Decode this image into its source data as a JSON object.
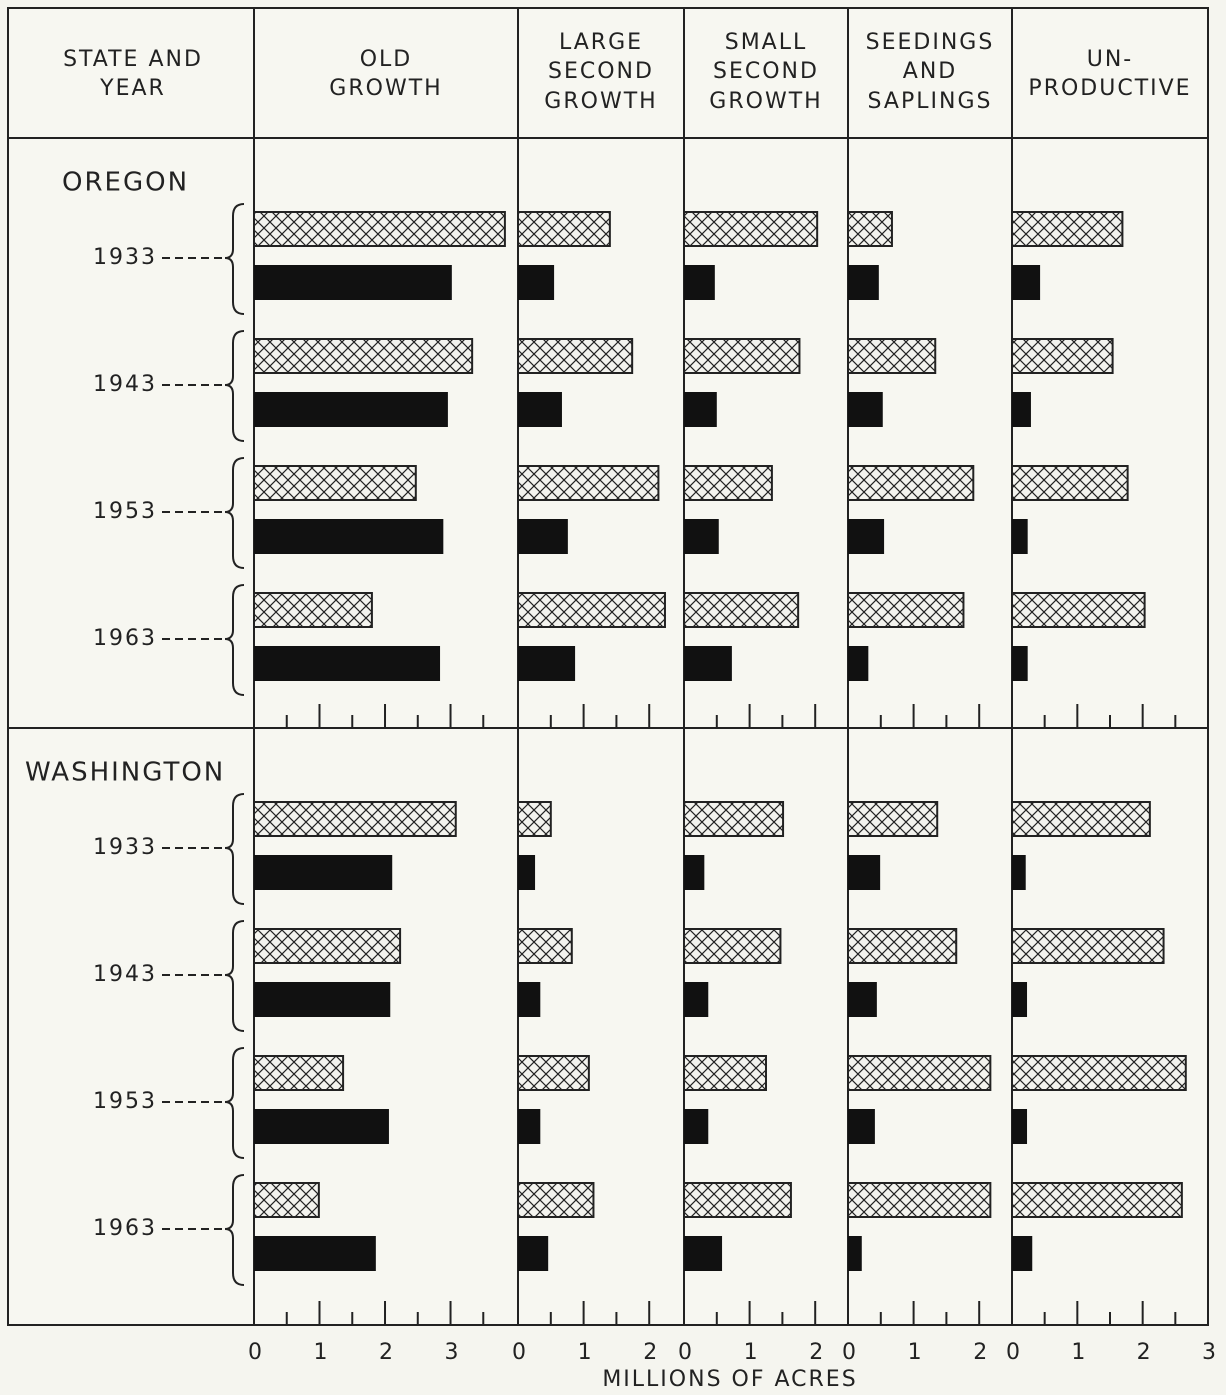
{
  "chart_data": {
    "type": "bar",
    "orientation": "horizontal",
    "header": [
      "STATE AND",
      "YEAR"
    ],
    "xlabel": "MILLIONS OF ACRES",
    "hatch_color": "#222222",
    "solid_color": "#111111",
    "columns": [
      {
        "title": [
          "OLD",
          "GROWTH"
        ],
        "xlim": [
          0,
          4.03
        ],
        "xticks": [
          0,
          1,
          2,
          3
        ],
        "minor_xticks": [
          0.5,
          1.5,
          2.5,
          3.5
        ]
      },
      {
        "title": [
          "LARGE",
          "SECOND",
          "GROWTH"
        ],
        "xlim": [
          0,
          2.53
        ],
        "xticks": [
          0,
          1,
          2
        ],
        "minor_xticks": [
          0.5,
          1.5
        ]
      },
      {
        "title": [
          "SMALL",
          "SECOND",
          "GROWTH"
        ],
        "xlim": [
          0,
          2.5
        ],
        "xticks": [
          0,
          1,
          2
        ],
        "minor_xticks": [
          0.5,
          1.5
        ]
      },
      {
        "title": [
          "SEEDINGS",
          "AND",
          "SAPLINGS"
        ],
        "xlim": [
          0,
          2.5
        ],
        "xticks": [
          0,
          1,
          2
        ],
        "minor_xticks": [
          0.5,
          1.5
        ]
      },
      {
        "title": [
          "UN-",
          "PRODUCTIVE"
        ],
        "xlim": [
          0,
          3.0
        ],
        "xticks": [
          0,
          1,
          2,
          3
        ],
        "minor_xticks": [
          0.5,
          1.5,
          2.5
        ]
      }
    ],
    "states": [
      {
        "name": "OREGON",
        "years": [
          {
            "year": "1933",
            "hatched": [
              3.83,
              1.4,
              2.03,
              0.67,
              1.69
            ],
            "solid": [
              3.02,
              0.55,
              0.47,
              0.47,
              0.43
            ]
          },
          {
            "year": "1943",
            "hatched": [
              3.33,
              1.74,
              1.76,
              1.33,
              1.54
            ],
            "solid": [
              2.96,
              0.67,
              0.5,
              0.53,
              0.29
            ]
          },
          {
            "year": "1953",
            "hatched": [
              2.47,
              2.14,
              1.34,
              1.91,
              1.77
            ],
            "solid": [
              2.89,
              0.76,
              0.53,
              0.55,
              0.24
            ]
          },
          {
            "year": "1963",
            "hatched": [
              1.8,
              2.24,
              1.74,
              1.76,
              2.03
            ],
            "solid": [
              2.84,
              0.87,
              0.73,
              0.31,
              0.24
            ]
          }
        ]
      },
      {
        "name": "WASHINGTON",
        "years": [
          {
            "year": "1933",
            "hatched": [
              3.08,
              0.5,
              1.51,
              1.36,
              2.11
            ],
            "solid": [
              2.11,
              0.26,
              0.31,
              0.49,
              0.21
            ]
          },
          {
            "year": "1943",
            "hatched": [
              2.23,
              0.82,
              1.47,
              1.65,
              2.32
            ],
            "solid": [
              2.08,
              0.34,
              0.37,
              0.44,
              0.23
            ]
          },
          {
            "year": "1953",
            "hatched": [
              1.36,
              1.08,
              1.25,
              2.17,
              2.66
            ],
            "solid": [
              2.06,
              0.34,
              0.37,
              0.41,
              0.23
            ]
          },
          {
            "year": "1963",
            "hatched": [
              0.99,
              1.15,
              1.63,
              2.17,
              2.6
            ],
            "solid": [
              1.86,
              0.46,
              0.58,
              0.21,
              0.31
            ]
          }
        ]
      }
    ]
  }
}
